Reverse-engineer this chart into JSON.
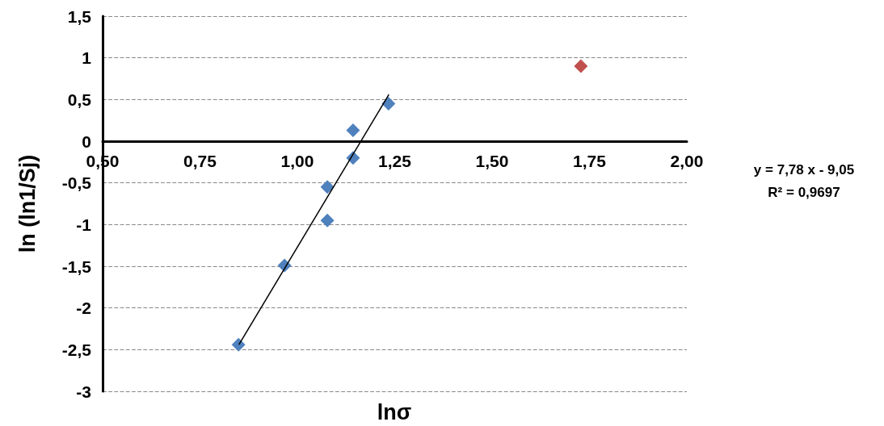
{
  "chart_data": {
    "type": "scatter",
    "xlabel": "lnσ",
    "ylabel": "ln (ln1/Sj)",
    "xlim": [
      0.5,
      2
    ],
    "xticks": [
      {
        "value": 0.5,
        "label": "0,50"
      },
      {
        "value": 0.75,
        "label": "0,75"
      },
      {
        "value": 1,
        "label": "1,00"
      },
      {
        "value": 1.25,
        "label": "1,25"
      },
      {
        "value": 1.5,
        "label": "1,50"
      },
      {
        "value": 1.75,
        "label": "1,75"
      },
      {
        "value": 2,
        "label": "2,00"
      }
    ],
    "ylim": [
      -3,
      1.5
    ],
    "yticks": [
      {
        "value": -3,
        "label": "-3"
      },
      {
        "value": -2.5,
        "label": "-2,5"
      },
      {
        "value": -2,
        "label": "-2"
      },
      {
        "value": -1.5,
        "label": "-1,5"
      },
      {
        "value": -1,
        "label": "-1"
      },
      {
        "value": -0.5,
        "label": "-0,5"
      },
      {
        "value": 0,
        "label": "0"
      },
      {
        "value": 0.5,
        "label": "0,5"
      },
      {
        "value": 1,
        "label": "1"
      },
      {
        "value": 1.5,
        "label": "1,5"
      }
    ],
    "grid": "y",
    "marker": "diamond",
    "annotations": [
      "y = 7,78 x - 9,05",
      "R² = 0,9697"
    ],
    "series": [
      {
        "color": "#4f81bd",
        "x": [
          0.849,
          0.967,
          1.077,
          1.077,
          1.143,
          1.143,
          1.234
        ],
        "values": [
          -2.44,
          -1.49,
          -0.95,
          -0.55,
          -0.2,
          0.13,
          0.45
        ]
      },
      {
        "color": "#c0504d",
        "x": [
          1.728
        ],
        "values": [
          0.9
        ]
      },
      {
        "type": "line",
        "marker": "none",
        "color": "#000000",
        "x": [
          0.85,
          1.235
        ],
        "values": [
          -2.44,
          0.56
        ]
      }
    ]
  }
}
